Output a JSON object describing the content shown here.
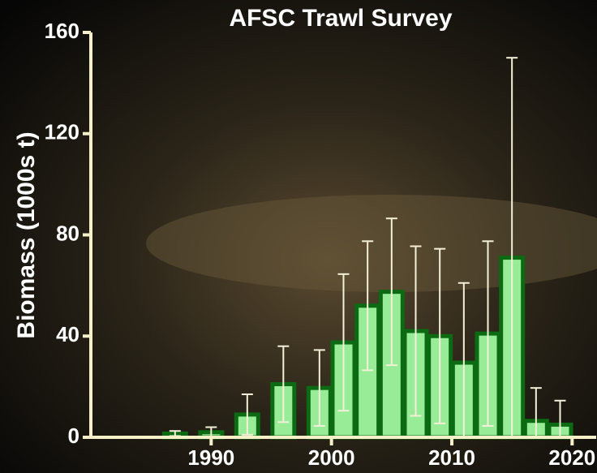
{
  "chart_data": {
    "type": "bar",
    "title": "AFSC Trawl Survey",
    "y_label": "Biomass (1000s t)",
    "x": [
      1987,
      1990,
      1993,
      1996,
      1999,
      2001,
      2003,
      2005,
      2007,
      2009,
      2011,
      2013,
      2015,
      2017,
      2019
    ],
    "values": [
      1.5,
      2,
      9,
      21,
      19.5,
      37.5,
      52,
      57.5,
      42,
      40,
      29.5,
      41,
      71,
      6.5,
      5
    ],
    "errors": [
      1,
      2,
      8,
      15,
      15,
      27,
      25.5,
      29,
      33.5,
      34.5,
      31.5,
      36.5,
      79,
      13,
      9.5
    ],
    "color": "#98ec98",
    "edge_color": "#0b6a12",
    "error_color": "#f4f0d8",
    "xlim": [
      1980,
      2022
    ],
    "xticks": [
      1990,
      2000,
      2010,
      2020
    ],
    "ylim": [
      0,
      160
    ],
    "yticks": [
      0,
      40,
      80,
      120,
      160
    ]
  }
}
